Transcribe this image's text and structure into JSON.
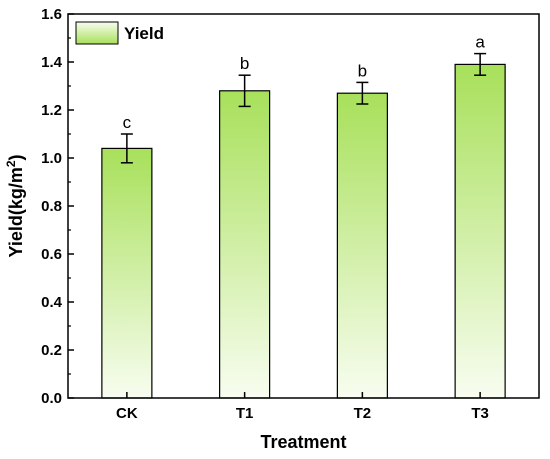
{
  "chart_data": {
    "type": "bar",
    "categories": [
      "CK",
      "T1",
      "T2",
      "T3"
    ],
    "series": [
      {
        "name": "Yield",
        "values": [
          1.04,
          1.28,
          1.27,
          1.39
        ],
        "errors": [
          0.06,
          0.065,
          0.045,
          0.045
        ],
        "significance": [
          "c",
          "b",
          "b",
          "a"
        ]
      }
    ],
    "xlabel": "Treatment",
    "ylabel": "Yield(kg/m",
    "ylabel_superscript": "2",
    "ylabel_suffix": ")",
    "ylim": [
      0,
      1.6
    ],
    "yticks": [
      "0.0",
      "0.2",
      "0.4",
      "0.6",
      "0.8",
      "1.0",
      "1.2",
      "1.4",
      "1.6"
    ],
    "legend_position": "top-left",
    "grid": false,
    "colors": {
      "bar_top": "#a8e05a",
      "bar_bottom": "#f8fdf0",
      "edge": "#000000"
    }
  }
}
